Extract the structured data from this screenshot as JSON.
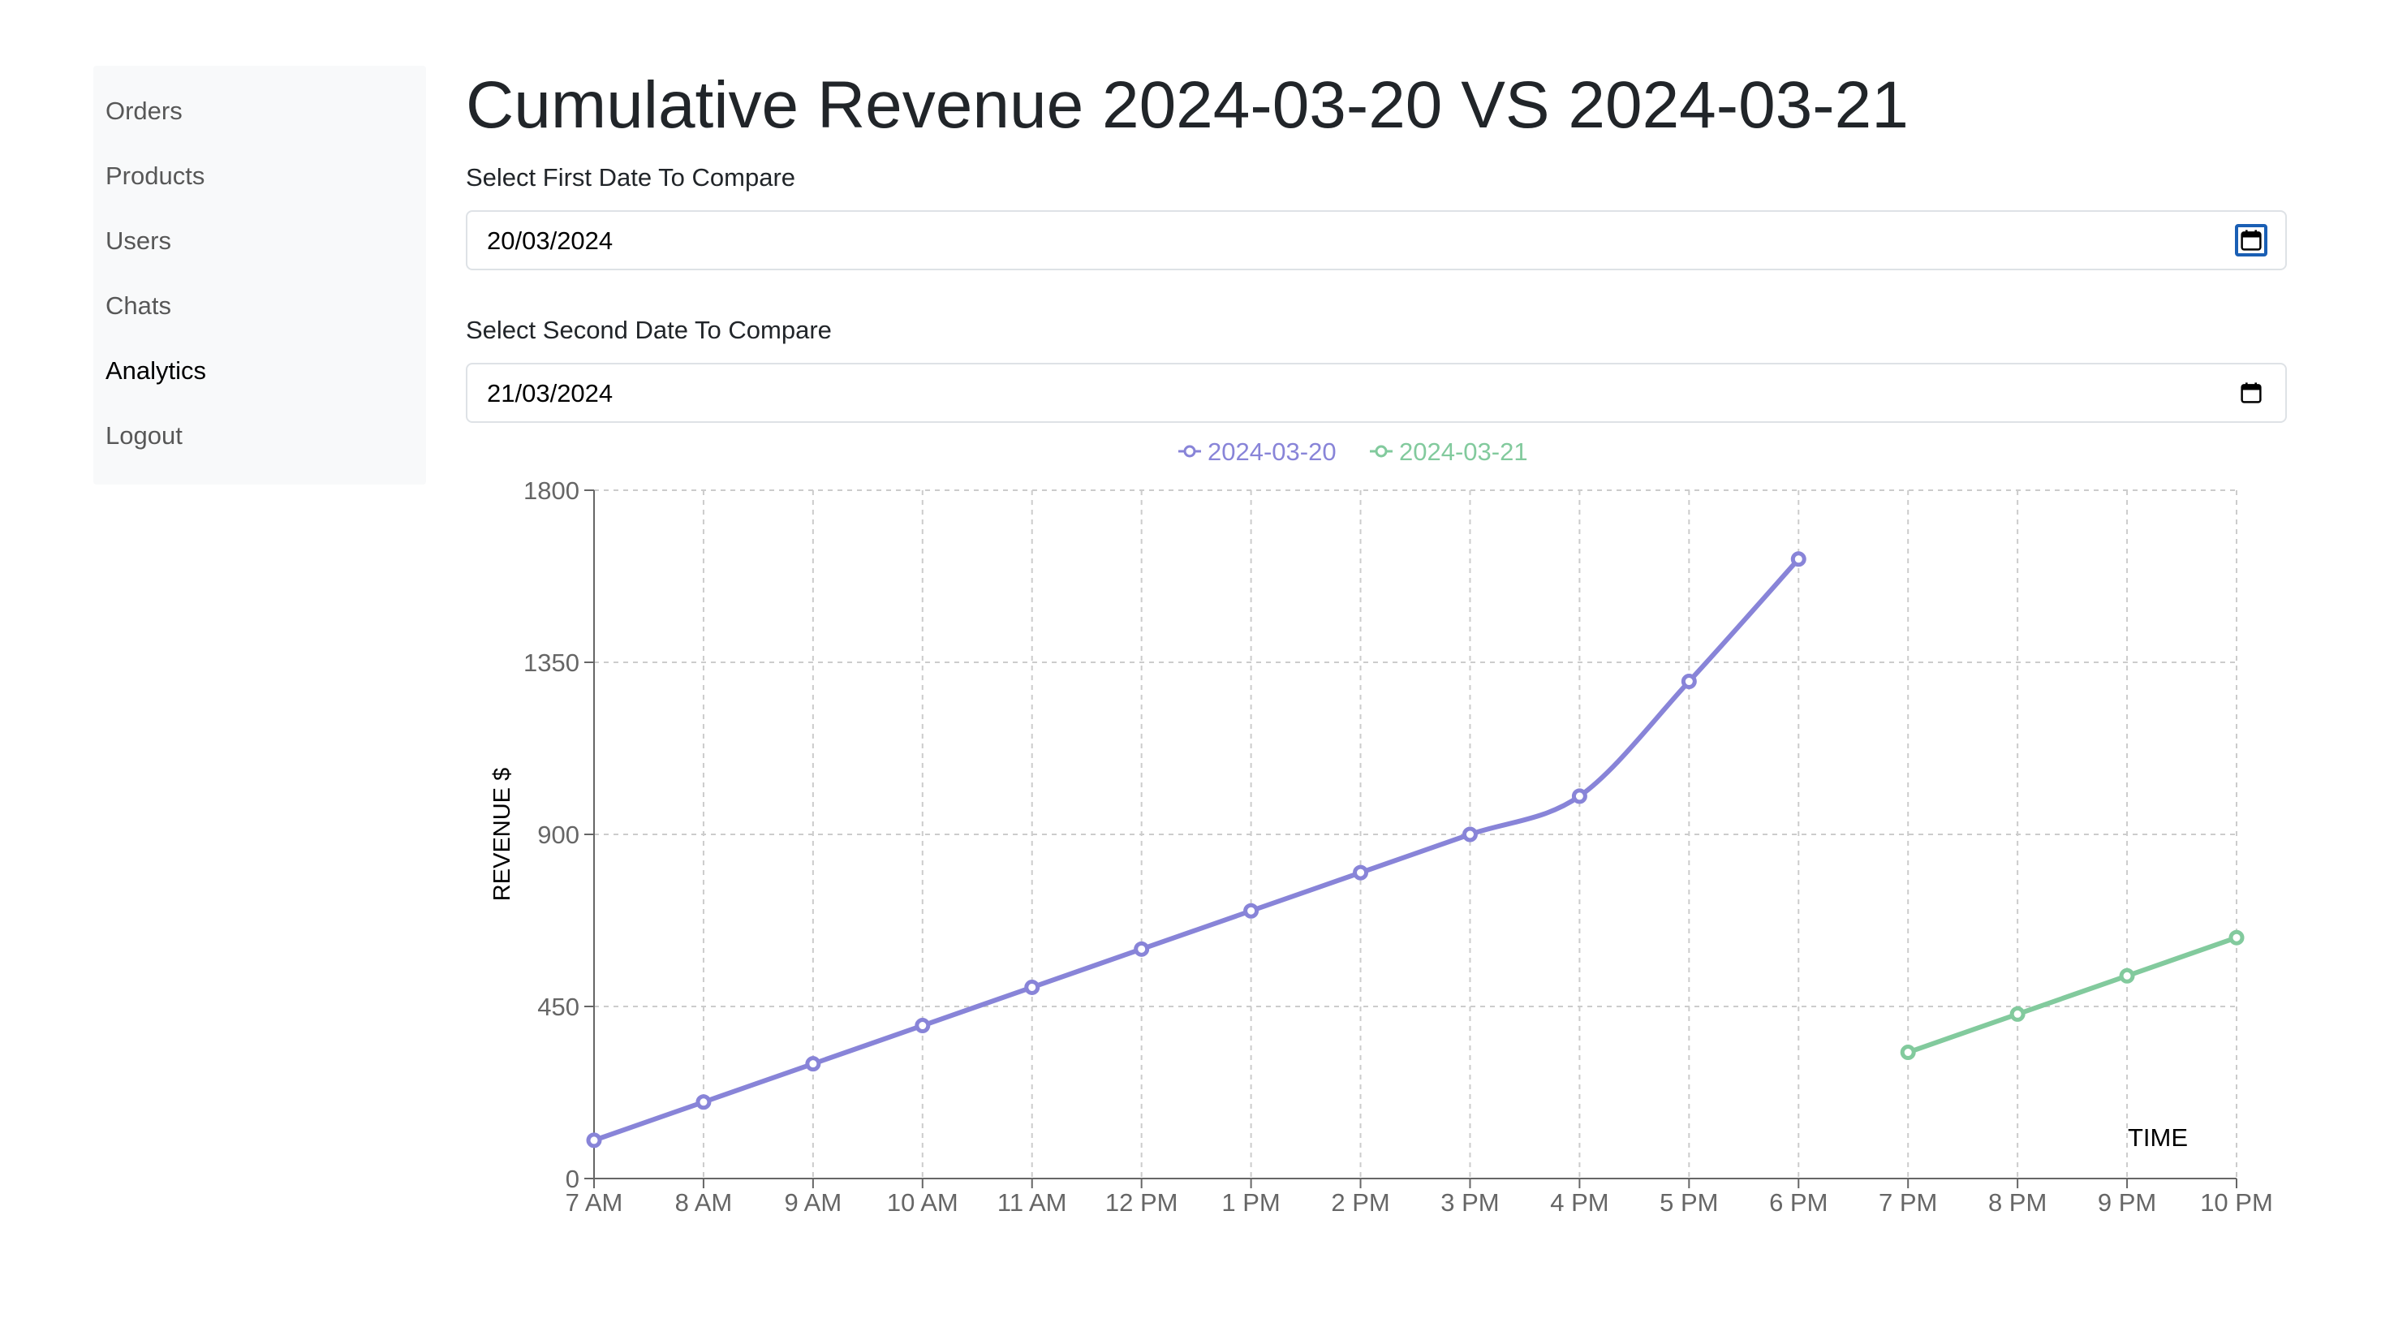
{
  "sidebar": {
    "items": [
      {
        "label": "Orders",
        "active": false
      },
      {
        "label": "Products",
        "active": false
      },
      {
        "label": "Users",
        "active": false
      },
      {
        "label": "Chats",
        "active": false
      },
      {
        "label": "Analytics",
        "active": true
      },
      {
        "label": "Logout",
        "active": false
      }
    ]
  },
  "page": {
    "title": "Cumulative Revenue 2024-03-20 VS 2024-03-21"
  },
  "form": {
    "first_date_label": "Select First Date To Compare",
    "first_date_value": "20/03/2024",
    "second_date_label": "Select Second Date To Compare",
    "second_date_value": "21/03/2024",
    "calendar_icon": "calendar-icon"
  },
  "chart_data": {
    "type": "line",
    "x": [
      "7 AM",
      "8 AM",
      "9 AM",
      "10 AM",
      "11 AM",
      "12 PM",
      "1 PM",
      "2 PM",
      "3 PM",
      "4 PM",
      "5 PM",
      "6 PM",
      "7 PM",
      "8 PM",
      "9 PM",
      "10 PM"
    ],
    "series": [
      {
        "name": "2024-03-20",
        "color": "#8884d8",
        "values": [
          100,
          200,
          300,
          400,
          500,
          600,
          700,
          800,
          900,
          1000,
          1300,
          1620,
          null,
          null,
          null,
          null
        ]
      },
      {
        "name": "2024-03-21",
        "color": "#82ca9d",
        "values": [
          null,
          null,
          null,
          null,
          null,
          null,
          null,
          null,
          null,
          null,
          null,
          null,
          330,
          430,
          530,
          630
        ]
      }
    ],
    "xlabel": "TIME",
    "ylabel": "REVENUE $",
    "y_ticks": [
      0,
      450,
      900,
      1350,
      1800
    ],
    "ylim": [
      0,
      1800
    ],
    "grid": true,
    "legend": "top-center"
  }
}
